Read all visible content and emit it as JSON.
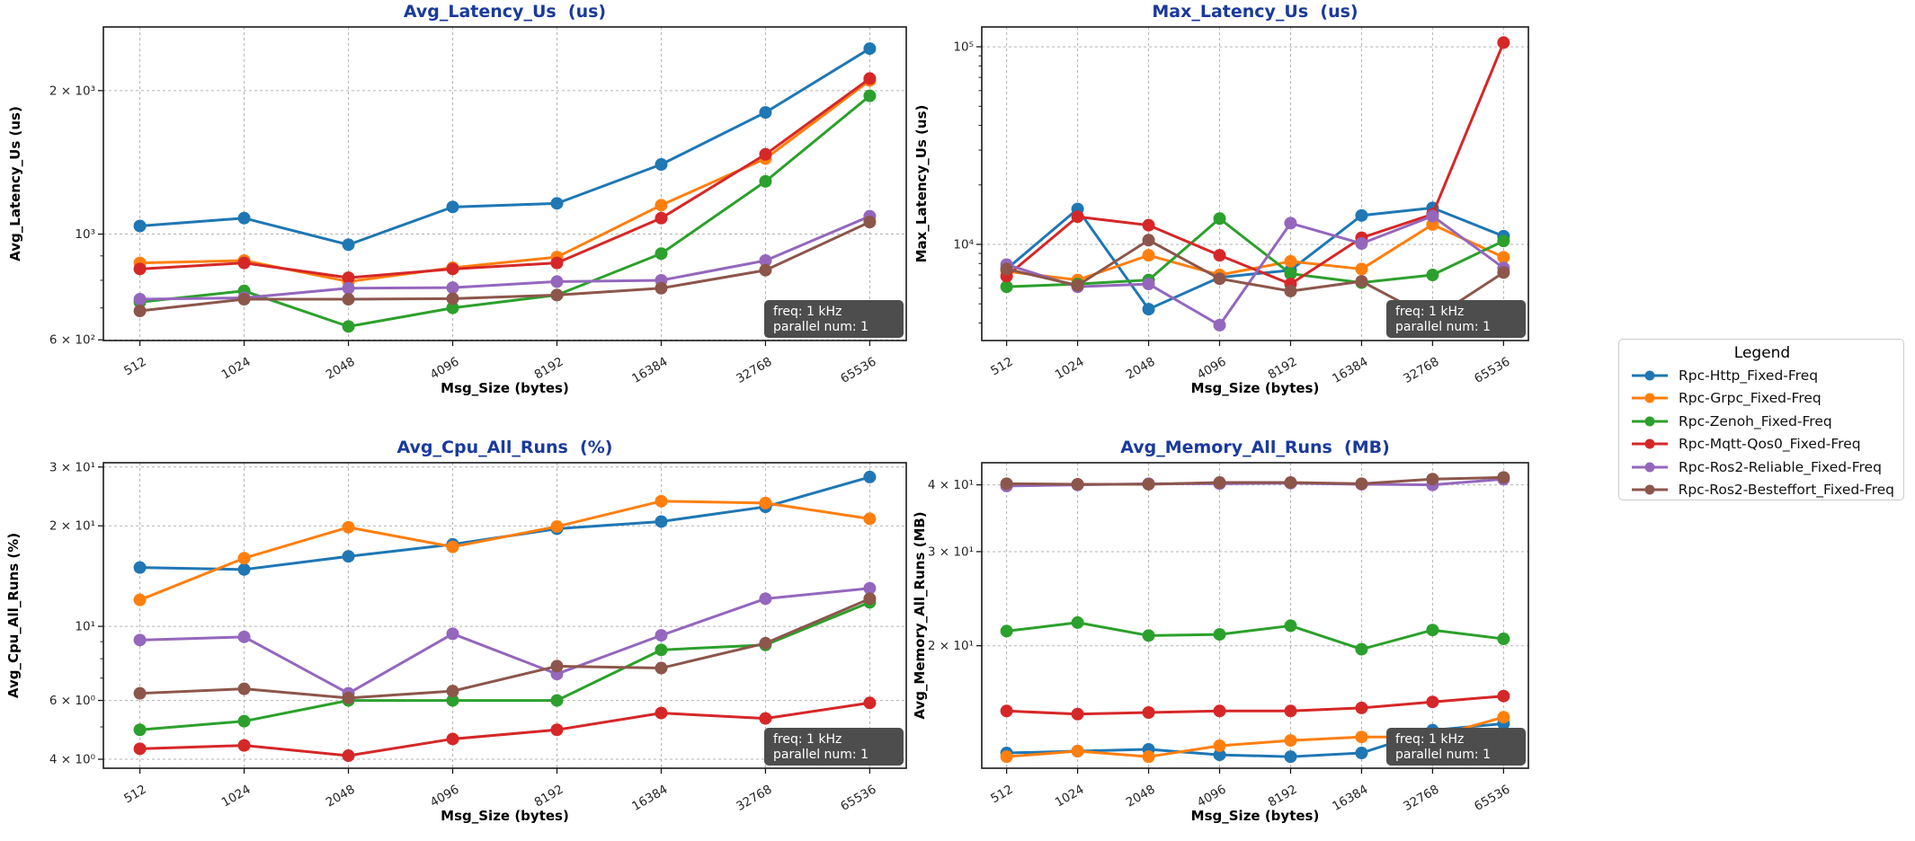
{
  "colors": {
    "title": "#1a3a9c",
    "annotation_bg": "#4d4d4d",
    "annotation_text": "#ffffff",
    "grid": "#b3b3b3",
    "spine": "#1a1a1a",
    "tick_label": "#262626"
  },
  "annotation": [
    "freq: 1 kHz",
    "parallel num: 1"
  ],
  "legend": {
    "title": "Legend",
    "items": [
      {
        "label": "Rpc-Http_Fixed-Freq",
        "color": "#1f77b4"
      },
      {
        "label": "Rpc-Grpc_Fixed-Freq",
        "color": "#ff7f0e"
      },
      {
        "label": "Rpc-Zenoh_Fixed-Freq",
        "color": "#2ca02c"
      },
      {
        "label": "Rpc-Mqtt-Qos0_Fixed-Freq",
        "color": "#d62728"
      },
      {
        "label": "Rpc-Ros2-Reliable_Fixed-Freq",
        "color": "#9467bd"
      },
      {
        "label": "Rpc-Ros2-Besteffort_Fixed-Freq",
        "color": "#8c564b"
      }
    ]
  },
  "chart_data": [
    {
      "id": "avg_latency",
      "type": "line",
      "title": "Avg_Latency_Us  (us)",
      "ylabel": "Avg_Latency_Us (us)",
      "xlabel": "Msg_Size (bytes)",
      "yscale": "log",
      "grid": true,
      "x_categories": [
        "512",
        "1024",
        "2048",
        "4096",
        "8192",
        "16384",
        "32768",
        "65536"
      ],
      "ylim": [
        598,
        2720
      ],
      "yticks": [
        {
          "v": 2000,
          "label": "2 × 10³"
        },
        {
          "v": 1000,
          "label": "10³"
        },
        {
          "v": 600,
          "label": "6 × 10²"
        }
      ],
      "series": [
        {
          "name": "Rpc-Http_Fixed-Freq",
          "color": "#1f77b4",
          "values": [
            1040,
            1080,
            950,
            1140,
            1160,
            1400,
            1800,
            2450
          ]
        },
        {
          "name": "Rpc-Grpc_Fixed-Freq",
          "color": "#ff7f0e",
          "values": [
            870,
            880,
            795,
            850,
            895,
            1150,
            1440,
            2100
          ]
        },
        {
          "name": "Rpc-Zenoh_Fixed-Freq",
          "color": "#2ca02c",
          "values": [
            720,
            760,
            640,
            700,
            745,
            910,
            1290,
            1950
          ]
        },
        {
          "name": "Rpc-Mqtt-Qos0_Fixed-Freq",
          "color": "#d62728",
          "values": [
            845,
            870,
            810,
            845,
            870,
            1080,
            1470,
            2120
          ]
        },
        {
          "name": "Rpc-Ros2-Reliable_Fixed-Freq",
          "color": "#9467bd",
          "values": [
            730,
            735,
            770,
            772,
            795,
            800,
            880,
            1090
          ]
        },
        {
          "name": "Rpc-Ros2-Besteffort_Fixed-Freq",
          "color": "#8c564b",
          "values": [
            690,
            730,
            730,
            732,
            745,
            770,
            840,
            1060
          ]
        }
      ]
    },
    {
      "id": "max_latency",
      "type": "line",
      "title": "Max_Latency_Us  (us)",
      "ylabel": "Max_Latency_Us (us)",
      "xlabel": "Msg_Size (bytes)",
      "yscale": "log",
      "grid": true,
      "x_categories": [
        "512",
        "1024",
        "2048",
        "4096",
        "8192",
        "16384",
        "32768",
        "65536"
      ],
      "ylim": [
        3260,
        126000
      ],
      "yticks": [
        {
          "v": 100000,
          "label": "10⁵"
        },
        {
          "v": 10000,
          "label": "10⁴"
        }
      ],
      "series": [
        {
          "name": "Rpc-Http_Fixed-Freq",
          "color": "#1f77b4",
          "values": [
            7500,
            15100,
            4700,
            6800,
            7400,
            14000,
            15300,
            11000
          ]
        },
        {
          "name": "Rpc-Grpc_Fixed-Freq",
          "color": "#ff7f0e",
          "values": [
            7300,
            6600,
            8800,
            7000,
            8200,
            7500,
            12600,
            8600
          ]
        },
        {
          "name": "Rpc-Zenoh_Fixed-Freq",
          "color": "#2ca02c",
          "values": [
            6100,
            6300,
            6600,
            13500,
            7100,
            6400,
            7000,
            10400
          ]
        },
        {
          "name": "Rpc-Mqtt-Qos0_Fixed-Freq",
          "color": "#d62728",
          "values": [
            6900,
            13800,
            12500,
            8800,
            6300,
            10800,
            14200,
            105000
          ]
        },
        {
          "name": "Rpc-Ros2-Reliable_Fixed-Freq",
          "color": "#9467bd",
          "values": [
            7900,
            6100,
            6300,
            3900,
            12800,
            10100,
            13900,
            7600
          ]
        },
        {
          "name": "Rpc-Ros2-Besteffort_Fixed-Freq",
          "color": "#8c564b",
          "values": [
            7500,
            6200,
            10500,
            6700,
            5800,
            6500,
            4200,
            7200
          ]
        }
      ]
    },
    {
      "id": "avg_cpu",
      "type": "line",
      "title": "Avg_Cpu_All_Runs  (%)",
      "ylabel": "Avg_Cpu_All_Runs (%)",
      "xlabel": "Msg_Size (bytes)",
      "yscale": "log",
      "grid": true,
      "x_categories": [
        "512",
        "1024",
        "2048",
        "4096",
        "8192",
        "16384",
        "32768",
        "65536"
      ],
      "ylim": [
        3.76,
        30.9
      ],
      "yticks": [
        {
          "v": 30,
          "label": "3 × 10¹"
        },
        {
          "v": 20,
          "label": "2 × 10¹"
        },
        {
          "v": 10,
          "label": "10¹"
        },
        {
          "v": 6,
          "label": "6 × 10⁰"
        },
        {
          "v": 4,
          "label": "4 × 10⁰"
        }
      ],
      "series": [
        {
          "name": "Rpc-Http_Fixed-Freq",
          "color": "#1f77b4",
          "values": [
            15.0,
            14.8,
            16.2,
            17.6,
            19.6,
            20.6,
            22.8,
            28.0
          ]
        },
        {
          "name": "Rpc-Grpc_Fixed-Freq",
          "color": "#ff7f0e",
          "values": [
            12.0,
            16.0,
            19.8,
            17.3,
            19.9,
            23.7,
            23.4,
            21.0
          ]
        },
        {
          "name": "Rpc-Zenoh_Fixed-Freq",
          "color": "#2ca02c",
          "values": [
            4.9,
            5.2,
            6.0,
            6.0,
            6.0,
            8.5,
            8.8,
            11.8
          ]
        },
        {
          "name": "Rpc-Mqtt-Qos0_Fixed-Freq",
          "color": "#d62728",
          "values": [
            4.3,
            4.4,
            4.1,
            4.6,
            4.9,
            5.5,
            5.3,
            5.9
          ]
        },
        {
          "name": "Rpc-Ros2-Reliable_Fixed-Freq",
          "color": "#9467bd",
          "values": [
            9.1,
            9.3,
            6.3,
            9.5,
            7.2,
            9.4,
            12.1,
            13.0
          ]
        },
        {
          "name": "Rpc-Ros2-Besteffort_Fixed-Freq",
          "color": "#8c564b",
          "values": [
            6.3,
            6.5,
            6.1,
            6.4,
            7.6,
            7.5,
            8.9,
            12.1
          ]
        }
      ]
    },
    {
      "id": "avg_memory",
      "type": "line",
      "title": "Avg_Memory_All_Runs  (MB)",
      "ylabel": "Avg_Memory_All_Runs (MB)",
      "xlabel": "Msg_Size (bytes)",
      "yscale": "log",
      "grid": true,
      "x_categories": [
        "512",
        "1024",
        "2048",
        "4096",
        "8192",
        "16384",
        "32768",
        "65536"
      ],
      "ylim": [
        11.8,
        44.0
      ],
      "yticks": [
        {
          "v": 40,
          "label": "4 × 10¹"
        },
        {
          "v": 30,
          "label": "3 × 10¹"
        },
        {
          "v": 20,
          "label": "2 × 10¹"
        }
      ],
      "series": [
        {
          "name": "Rpc-Http_Fixed-Freq",
          "color": "#1f77b4",
          "values": [
            12.6,
            12.7,
            12.8,
            12.5,
            12.4,
            12.6,
            13.9,
            14.3
          ]
        },
        {
          "name": "Rpc-Grpc_Fixed-Freq",
          "color": "#ff7f0e",
          "values": [
            12.4,
            12.7,
            12.4,
            13.0,
            13.3,
            13.5,
            13.5,
            14.7
          ]
        },
        {
          "name": "Rpc-Zenoh_Fixed-Freq",
          "color": "#2ca02c",
          "values": [
            21.3,
            22.1,
            20.9,
            21.0,
            21.8,
            19.7,
            21.4,
            20.6
          ]
        },
        {
          "name": "Rpc-Mqtt-Qos0_Fixed-Freq",
          "color": "#d62728",
          "values": [
            15.1,
            14.9,
            15.0,
            15.1,
            15.1,
            15.3,
            15.7,
            16.1
          ]
        },
        {
          "name": "Rpc-Ros2-Reliable_Fixed-Freq",
          "color": "#9467bd",
          "values": [
            39.8,
            40.0,
            40.2,
            40.2,
            40.3,
            40.1,
            40.0,
            41.0
          ]
        },
        {
          "name": "Rpc-Ros2-Besteffort_Fixed-Freq",
          "color": "#8c564b",
          "values": [
            40.2,
            40.1,
            40.1,
            40.4,
            40.4,
            40.2,
            41.0,
            41.3
          ]
        }
      ]
    }
  ]
}
